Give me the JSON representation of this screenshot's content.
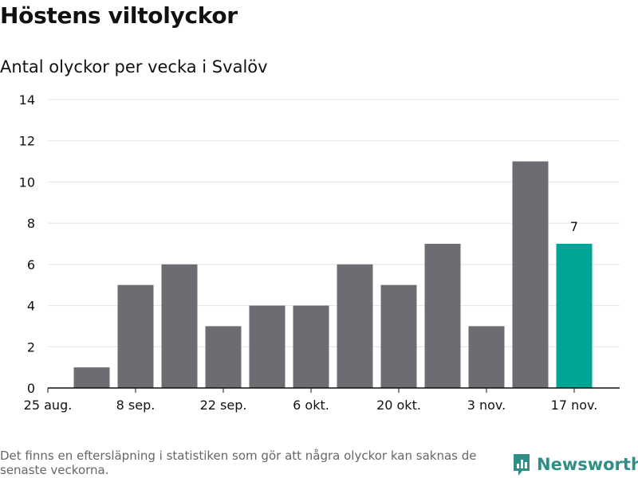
{
  "header": {
    "title": "Höstens viltolyckor",
    "subtitle": "Antal olyckor per vecka i Svalöv"
  },
  "footer": {
    "note": "Det finns en eftersläpning i statistiken som gör att några olyckor kan saknas de senaste veckorna.",
    "brand": "Newsworthy"
  },
  "colors": {
    "bar": "#6d6c72",
    "highlight": "#00a596",
    "grid": "#e2e2e2",
    "axis": "#111111",
    "brand": "#2f8f86"
  },
  "chart_data": {
    "type": "bar",
    "title": "Höstens viltolyckor",
    "subtitle": "Antal olyckor per vecka i Svalöv",
    "xlabel": "",
    "ylabel": "",
    "ylim": [
      0,
      14
    ],
    "yticks": [
      0,
      2,
      4,
      6,
      8,
      10,
      12,
      14
    ],
    "grid": true,
    "week_index": [
      1,
      2,
      3,
      4,
      5,
      6,
      7,
      8,
      9,
      10,
      11,
      12
    ],
    "values": [
      1,
      5,
      6,
      3,
      4,
      4,
      6,
      5,
      7,
      3,
      11,
      7
    ],
    "highlight_index": 11,
    "highlight_label": "7",
    "x_ticks": [
      {
        "pos": 0,
        "label": "25 aug."
      },
      {
        "pos": 2,
        "label": "8 sep."
      },
      {
        "pos": 4,
        "label": "22 sep."
      },
      {
        "pos": 6,
        "label": "6 okt."
      },
      {
        "pos": 8,
        "label": "20 okt."
      },
      {
        "pos": 10,
        "label": "3 nov."
      },
      {
        "pos": 12,
        "label": "17 nov."
      }
    ]
  }
}
